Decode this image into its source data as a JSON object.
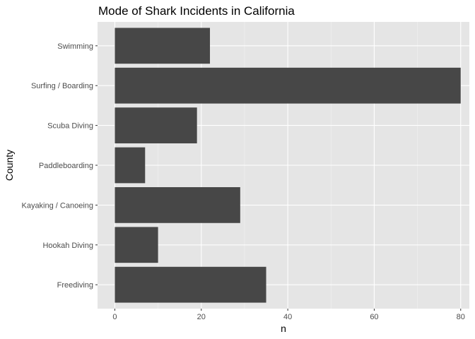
{
  "chart_data": {
    "type": "bar",
    "orientation": "horizontal",
    "title": "Mode of Shark Incidents in California",
    "xlabel": "n",
    "ylabel": "County",
    "categories": [
      "Freediving",
      "Hookah Diving",
      "Kayaking / Canoeing",
      "Paddleboarding",
      "Scuba Diving",
      "Surfing / Boarding",
      "Swimming"
    ],
    "values": [
      35,
      10,
      29,
      7,
      19,
      80,
      22
    ],
    "xlim": [
      -4,
      82
    ],
    "xticks": [
      0,
      20,
      40,
      60,
      80
    ],
    "xtick_labels": [
      "0",
      "20",
      "40",
      "60",
      "80"
    ],
    "grid": true,
    "colors": {
      "panel_background": "#e5e5e5",
      "grid_major": "#ffffff",
      "grid_minor": "#f2f2f2",
      "bar_fill": "#474747",
      "tick_text": "#4d4d4d"
    }
  }
}
